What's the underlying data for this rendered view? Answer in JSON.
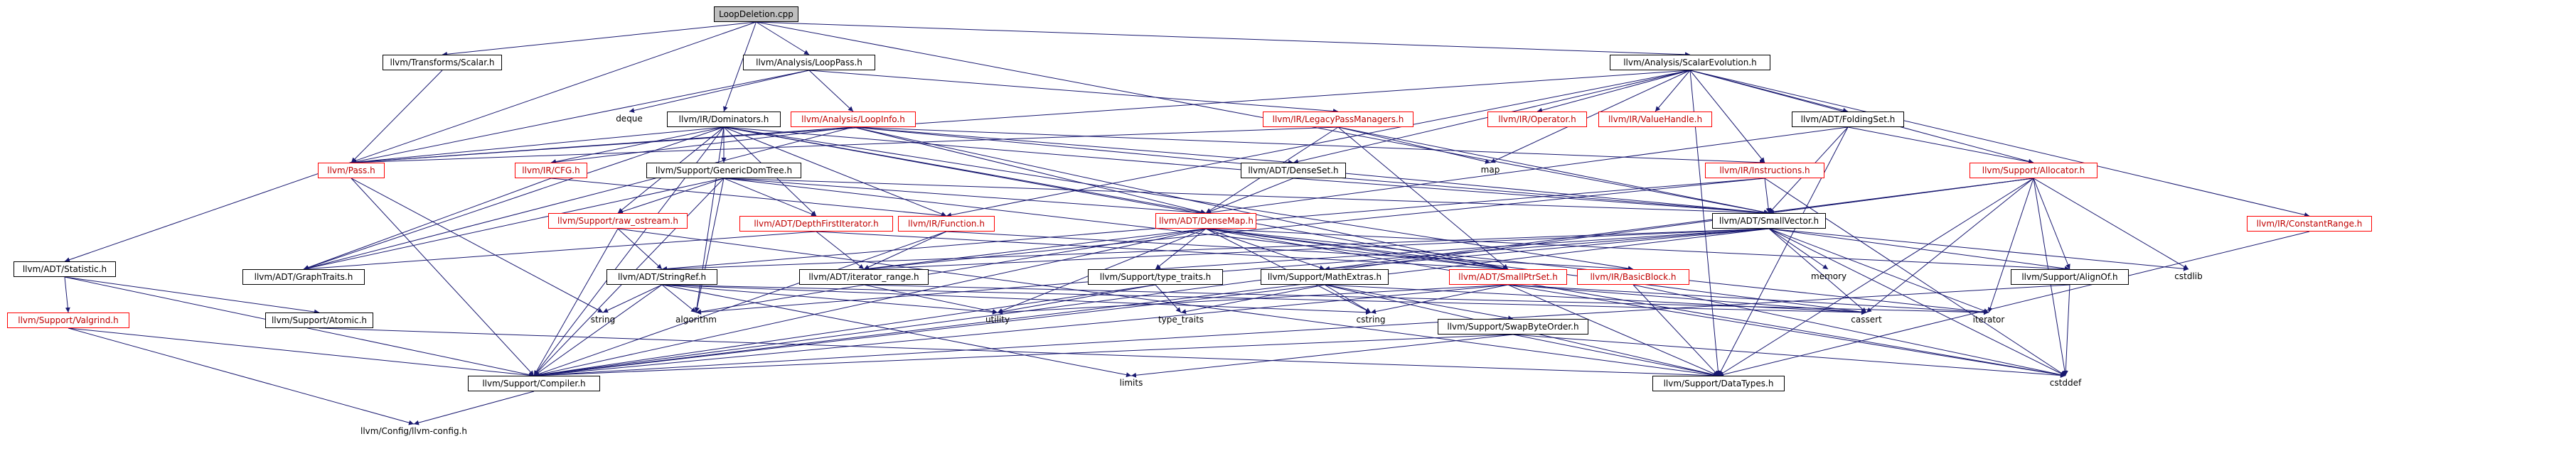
{
  "graph": {
    "title": "LoopDeletion.cpp",
    "colors": {
      "edge": "#191970",
      "node_border": "#000000",
      "missing_border": "#ff0000",
      "root_fill": "#bfbfbf"
    },
    "nodes": [
      {
        "id": "root",
        "label": "LoopDeletion.cpp",
        "style": "root"
      },
      {
        "id": "transforms_scalar",
        "label": "llvm/Transforms/Scalar.h",
        "style": "box"
      },
      {
        "id": "loop_pass",
        "label": "llvm/Analysis/LoopPass.h",
        "style": "box"
      },
      {
        "id": "scalar_evolution",
        "label": "llvm/Analysis/ScalarEvolution.h",
        "style": "box"
      },
      {
        "id": "deque",
        "label": "deque",
        "style": "plain"
      },
      {
        "id": "dominators",
        "label": "llvm/IR/Dominators.h",
        "style": "box"
      },
      {
        "id": "loop_info",
        "label": "llvm/Analysis/LoopInfo.h",
        "style": "red"
      },
      {
        "id": "legacy_pm",
        "label": "llvm/IR/LegacyPassManagers.h",
        "style": "red"
      },
      {
        "id": "operator",
        "label": "llvm/IR/Operator.h",
        "style": "red"
      },
      {
        "id": "value_handle",
        "label": "llvm/IR/ValueHandle.h",
        "style": "red"
      },
      {
        "id": "folding_set",
        "label": "llvm/ADT/FoldingSet.h",
        "style": "box"
      },
      {
        "id": "constant_range",
        "label": "llvm/IR/ConstantRange.h",
        "style": "red"
      },
      {
        "id": "pass",
        "label": "llvm/Pass.h",
        "style": "red"
      },
      {
        "id": "cfg",
        "label": "llvm/IR/CFG.h",
        "style": "red"
      },
      {
        "id": "generic_dom_tree",
        "label": "llvm/Support/GenericDomTree.h",
        "style": "box"
      },
      {
        "id": "dense_set",
        "label": "llvm/ADT/DenseSet.h",
        "style": "box"
      },
      {
        "id": "map",
        "label": "map",
        "style": "plain"
      },
      {
        "id": "instructions",
        "label": "llvm/IR/Instructions.h",
        "style": "red"
      },
      {
        "id": "allocator",
        "label": "llvm/Support/Allocator.h",
        "style": "red"
      },
      {
        "id": "raw_ostream",
        "label": "llvm/Support/raw_ostream.h",
        "style": "red"
      },
      {
        "id": "depth_first",
        "label": "llvm/ADT/DepthFirstIterator.h",
        "style": "red"
      },
      {
        "id": "function",
        "label": "llvm/IR/Function.h",
        "style": "red"
      },
      {
        "id": "dense_map",
        "label": "llvm/ADT/DenseMap.h",
        "style": "red"
      },
      {
        "id": "small_vector",
        "label": "llvm/ADT/SmallVector.h",
        "style": "box"
      },
      {
        "id": "statistic",
        "label": "llvm/ADT/Statistic.h",
        "style": "box"
      },
      {
        "id": "graph_traits",
        "label": "llvm/ADT/GraphTraits.h",
        "style": "box"
      },
      {
        "id": "string_ref",
        "label": "llvm/ADT/StringRef.h",
        "style": "box"
      },
      {
        "id": "iterator_range",
        "label": "llvm/ADT/iterator_range.h",
        "style": "box"
      },
      {
        "id": "type_traits_h",
        "label": "llvm/Support/type_traits.h",
        "style": "box"
      },
      {
        "id": "math_extras",
        "label": "llvm/Support/MathExtras.h",
        "style": "box"
      },
      {
        "id": "small_ptr_set",
        "label": "llvm/ADT/SmallPtrSet.h",
        "style": "red"
      },
      {
        "id": "basic_block",
        "label": "llvm/IR/BasicBlock.h",
        "style": "red"
      },
      {
        "id": "memory",
        "label": "memory",
        "style": "plain"
      },
      {
        "id": "align_of",
        "label": "llvm/Support/AlignOf.h",
        "style": "box"
      },
      {
        "id": "cstdlib",
        "label": "cstdlib",
        "style": "plain"
      },
      {
        "id": "valgrind",
        "label": "llvm/Support/Valgrind.h",
        "style": "red"
      },
      {
        "id": "atomic",
        "label": "llvm/Support/Atomic.h",
        "style": "box"
      },
      {
        "id": "string",
        "label": "string",
        "style": "plain"
      },
      {
        "id": "algorithm",
        "label": "algorithm",
        "style": "plain"
      },
      {
        "id": "utility",
        "label": "utility",
        "style": "plain"
      },
      {
        "id": "type_traits",
        "label": "type_traits",
        "style": "plain"
      },
      {
        "id": "cstring",
        "label": "cstring",
        "style": "plain"
      },
      {
        "id": "swap_byte_order",
        "label": "llvm/Support/SwapByteOrder.h",
        "style": "box"
      },
      {
        "id": "cassert",
        "label": "cassert",
        "style": "plain"
      },
      {
        "id": "iterator",
        "label": "iterator",
        "style": "plain"
      },
      {
        "id": "compiler",
        "label": "llvm/Support/Compiler.h",
        "style": "box"
      },
      {
        "id": "limits",
        "label": "limits",
        "style": "plain"
      },
      {
        "id": "data_types",
        "label": "llvm/Support/DataTypes.h",
        "style": "box"
      },
      {
        "id": "cstddef",
        "label": "cstddef",
        "style": "plain"
      },
      {
        "id": "llvm_config",
        "label": "llvm/Config/llvm-config.h",
        "style": "plain"
      }
    ],
    "edges": [
      [
        "root",
        "transforms_scalar"
      ],
      [
        "root",
        "loop_pass"
      ],
      [
        "root",
        "scalar_evolution"
      ],
      [
        "root",
        "statistic"
      ],
      [
        "root",
        "dominators"
      ],
      [
        "root",
        "small_vector"
      ],
      [
        "loop_pass",
        "deque"
      ],
      [
        "loop_pass",
        "loop_info"
      ],
      [
        "loop_pass",
        "legacy_pm"
      ],
      [
        "loop_pass",
        "pass"
      ],
      [
        "transforms_scalar",
        "pass"
      ],
      [
        "scalar_evolution",
        "operator"
      ],
      [
        "scalar_evolution",
        "value_handle"
      ],
      [
        "scalar_evolution",
        "folding_set"
      ],
      [
        "scalar_evolution",
        "constant_range"
      ],
      [
        "scalar_evolution",
        "pass"
      ],
      [
        "scalar_evolution",
        "dense_set"
      ],
      [
        "scalar_evolution",
        "map"
      ],
      [
        "scalar_evolution",
        "instructions"
      ],
      [
        "scalar_evolution",
        "allocator"
      ],
      [
        "scalar_evolution",
        "data_types"
      ],
      [
        "scalar_evolution",
        "function"
      ],
      [
        "dominators",
        "pass"
      ],
      [
        "dominators",
        "cfg"
      ],
      [
        "dominators",
        "generic_dom_tree"
      ],
      [
        "dominators",
        "dense_map"
      ],
      [
        "dominators",
        "small_vector"
      ],
      [
        "dominators",
        "function"
      ],
      [
        "dominators",
        "basic_block"
      ],
      [
        "dominators",
        "depth_first"
      ],
      [
        "dominators",
        "graph_traits"
      ],
      [
        "dominators",
        "compiler"
      ],
      [
        "dominators",
        "algorithm"
      ],
      [
        "dominators",
        "raw_ostream"
      ],
      [
        "dominators",
        "small_ptr_set"
      ],
      [
        "loop_info",
        "pass"
      ],
      [
        "loop_info",
        "cfg"
      ],
      [
        "loop_info",
        "dense_set"
      ],
      [
        "loop_info",
        "dense_map"
      ],
      [
        "loop_info",
        "small_vector"
      ],
      [
        "loop_info",
        "graph_traits"
      ],
      [
        "loop_info",
        "small_ptr_set"
      ],
      [
        "loop_info",
        "instructions"
      ],
      [
        "legacy_pm",
        "pass"
      ],
      [
        "legacy_pm",
        "dense_map"
      ],
      [
        "legacy_pm",
        "small_vector"
      ],
      [
        "legacy_pm",
        "map"
      ],
      [
        "legacy_pm",
        "small_ptr_set"
      ],
      [
        "folding_set",
        "small_vector"
      ],
      [
        "folding_set",
        "allocator"
      ],
      [
        "folding_set",
        "data_types"
      ],
      [
        "folding_set",
        "dense_map"
      ],
      [
        "constant_range",
        "data_types"
      ],
      [
        "pass",
        "compiler"
      ],
      [
        "pass",
        "string"
      ],
      [
        "cfg",
        "graph_traits"
      ],
      [
        "cfg",
        "function"
      ],
      [
        "generic_dom_tree",
        "dense_map"
      ],
      [
        "generic_dom_tree",
        "depth_first"
      ],
      [
        "generic_dom_tree",
        "graph_traits"
      ],
      [
        "generic_dom_tree",
        "small_ptr_set"
      ],
      [
        "generic_dom_tree",
        "small_vector"
      ],
      [
        "generic_dom_tree",
        "raw_ostream"
      ],
      [
        "generic_dom_tree",
        "compiler"
      ],
      [
        "generic_dom_tree",
        "algorithm"
      ],
      [
        "dense_set",
        "dense_map"
      ],
      [
        "dense_set",
        "small_vector"
      ],
      [
        "instructions",
        "small_vector"
      ],
      [
        "instructions",
        "iterator_range"
      ],
      [
        "instructions",
        "string_ref"
      ],
      [
        "instructions",
        "cstddef"
      ],
      [
        "allocator",
        "small_vector"
      ],
      [
        "allocator",
        "align_of"
      ],
      [
        "allocator",
        "data_types"
      ],
      [
        "allocator",
        "math_extras"
      ],
      [
        "allocator",
        "cassert"
      ],
      [
        "allocator",
        "cstddef"
      ],
      [
        "allocator",
        "cstdlib"
      ],
      [
        "allocator",
        "iterator"
      ],
      [
        "allocator",
        "compiler"
      ],
      [
        "raw_ostream",
        "string_ref"
      ],
      [
        "raw_ostream",
        "compiler"
      ],
      [
        "raw_ostream",
        "data_types"
      ],
      [
        "depth_first",
        "graph_traits"
      ],
      [
        "depth_first",
        "iterator_range"
      ],
      [
        "depth_first",
        "small_ptr_set"
      ],
      [
        "function",
        "basic_block"
      ],
      [
        "function",
        "iterator_range"
      ],
      [
        "function",
        "compiler"
      ],
      [
        "dense_map",
        "type_traits_h"
      ],
      [
        "dense_map",
        "math_extras"
      ],
      [
        "dense_map",
        "align_of"
      ],
      [
        "dense_map",
        "small_ptr_set"
      ],
      [
        "dense_map",
        "algorithm"
      ],
      [
        "dense_map",
        "cassert"
      ],
      [
        "dense_map",
        "cstddef"
      ],
      [
        "dense_map",
        "utility"
      ],
      [
        "dense_map",
        "iterator"
      ],
      [
        "dense_map",
        "compiler"
      ],
      [
        "dense_map",
        "cstring"
      ],
      [
        "dense_map",
        "iterator_range"
      ],
      [
        "small_vector",
        "align_of"
      ],
      [
        "small_vector",
        "math_extras"
      ],
      [
        "small_vector",
        "type_traits_h"
      ],
      [
        "small_vector",
        "compiler"
      ],
      [
        "small_vector",
        "memory"
      ],
      [
        "small_vector",
        "cstdlib"
      ],
      [
        "small_vector",
        "cassert"
      ],
      [
        "small_vector",
        "cstddef"
      ],
      [
        "small_vector",
        "iterator"
      ],
      [
        "small_vector",
        "algorithm"
      ],
      [
        "small_vector",
        "iterator_range"
      ],
      [
        "small_vector",
        "string_ref"
      ],
      [
        "statistic",
        "atomic"
      ],
      [
        "statistic",
        "valgrind"
      ],
      [
        "statistic",
        "compiler"
      ],
      [
        "string_ref",
        "algorithm"
      ],
      [
        "string_ref",
        "string"
      ],
      [
        "string_ref",
        "utility"
      ],
      [
        "string_ref",
        "cassert"
      ],
      [
        "string_ref",
        "cstring"
      ],
      [
        "string_ref",
        "limits"
      ],
      [
        "string_ref",
        "compiler"
      ],
      [
        "iterator_range",
        "utility"
      ],
      [
        "iterator_range",
        "iterator"
      ],
      [
        "type_traits_h",
        "type_traits"
      ],
      [
        "type_traits_h",
        "utility"
      ],
      [
        "type_traits_h",
        "compiler"
      ],
      [
        "math_extras",
        "swap_byte_order"
      ],
      [
        "math_extras",
        "compiler"
      ],
      [
        "math_extras",
        "cassert"
      ],
      [
        "math_extras",
        "cstring"
      ],
      [
        "math_extras",
        "type_traits"
      ],
      [
        "math_extras",
        "data_types"
      ],
      [
        "small_ptr_set",
        "compiler"
      ],
      [
        "small_ptr_set",
        "data_types"
      ],
      [
        "small_ptr_set",
        "cassert"
      ],
      [
        "small_ptr_set",
        "cstddef"
      ],
      [
        "small_ptr_set",
        "cstring"
      ],
      [
        "small_ptr_set",
        "iterator"
      ],
      [
        "small_ptr_set",
        "utility"
      ],
      [
        "basic_block",
        "data_types"
      ],
      [
        "basic_block",
        "cstddef"
      ],
      [
        "align_of",
        "compiler"
      ],
      [
        "align_of",
        "cstddef"
      ],
      [
        "valgrind",
        "compiler"
      ],
      [
        "valgrind",
        "llvm_config"
      ],
      [
        "atomic",
        "data_types"
      ],
      [
        "swap_byte_order",
        "compiler"
      ],
      [
        "swap_byte_order",
        "data_types"
      ],
      [
        "swap_byte_order",
        "limits"
      ],
      [
        "swap_byte_order",
        "cstddef"
      ],
      [
        "compiler",
        "llvm_config"
      ]
    ]
  }
}
